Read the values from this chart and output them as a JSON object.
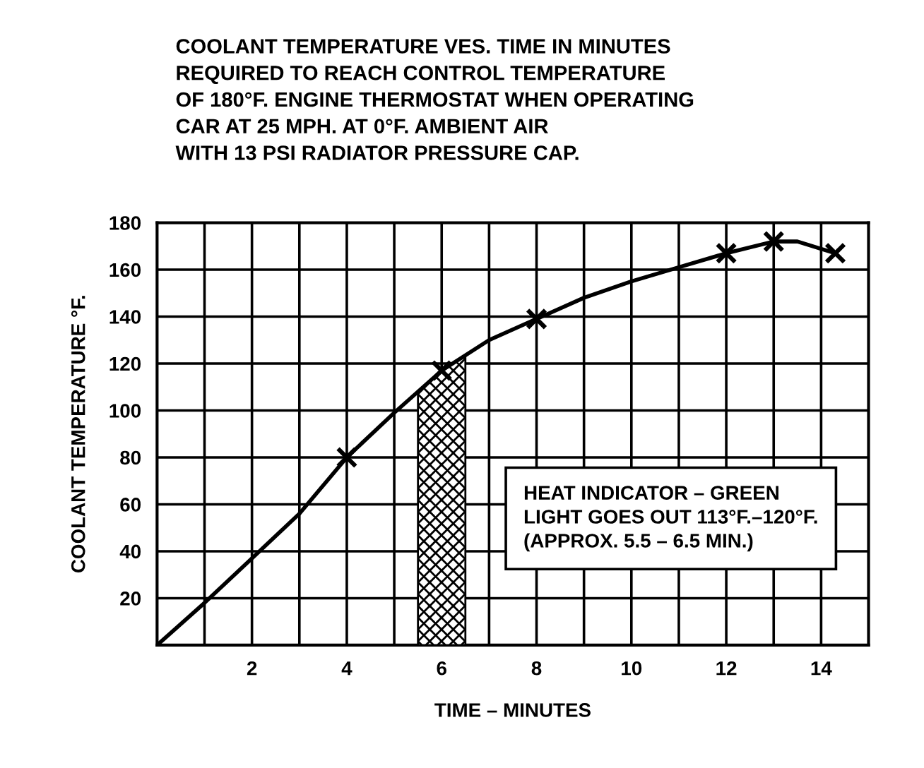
{
  "chart_data": {
    "type": "line",
    "title": "COOLANT TEMPERATURE VES. TIME IN MINUTES\nREQUIRED TO REACH CONTROL TEMPERATURE\nOF 180°F. ENGINE THERMOSTAT WHEN OPERATING\nCAR AT 25 MPH. AT 0°F. AMBIENT AIR\nWITH 13 PSI RADIATOR PRESSURE CAP.",
    "xlabel": "TIME – MINUTES",
    "ylabel": "COOLANT TEMPERATURE °F.",
    "series": [
      {
        "color": "#000000",
        "marker": "none",
        "x": [
          0,
          1,
          2,
          3,
          4,
          5,
          6,
          7,
          8,
          9,
          10,
          11,
          12,
          13,
          13.5,
          14.3
        ],
        "values": [
          0,
          18,
          37,
          56,
          80,
          99,
          117,
          130,
          139,
          148,
          155,
          161,
          167,
          172,
          172,
          167
        ]
      },
      {
        "type": "scatter",
        "color": "#000000",
        "marker": "cross",
        "x": [
          4,
          6,
          8,
          12,
          13,
          14.3
        ],
        "values": [
          80,
          117,
          139,
          167,
          172,
          167
        ]
      }
    ],
    "bands": [
      {
        "axis": "x",
        "from": 5.5,
        "to": 6.5,
        "color": "#000000"
      }
    ],
    "annotations": [
      "HEAT INDICATOR – GREEN\nLIGHT GOES OUT 113°F.–120°F.\n(APPROX. 5.5 – 6.5 MIN.)"
    ],
    "xlim": [
      0,
      15
    ],
    "ylim": [
      0,
      180
    ],
    "xticks": [
      {
        "value": 1,
        "label": null
      },
      2,
      {
        "value": 3,
        "label": null
      },
      4,
      {
        "value": 5,
        "label": null
      },
      6,
      {
        "value": 7,
        "label": null
      },
      8,
      {
        "value": 9,
        "label": null
      },
      10,
      {
        "value": 11,
        "label": null
      },
      12,
      {
        "value": 13,
        "label": null
      },
      14
    ],
    "yticks": [
      20,
      40,
      60,
      80,
      100,
      120,
      140,
      160,
      180
    ],
    "grid": true
  }
}
